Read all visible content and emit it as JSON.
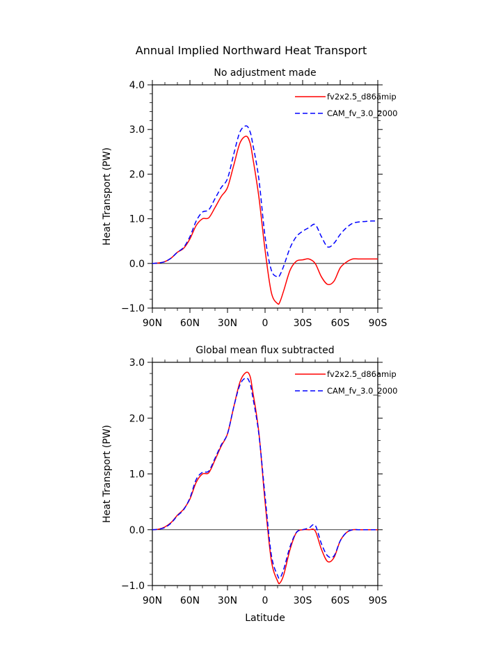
{
  "figure_title": "Annual Implied Northward Heat Transport",
  "colors": {
    "series_a": "#ff0000",
    "series_b": "#0000ff",
    "axis": "#000000"
  },
  "chart_data": [
    {
      "type": "line",
      "title": "No adjustment made",
      "xlabel": "",
      "ylabel": "Heat Transport (PW)",
      "xlim": [
        90,
        -90
      ],
      "ylim": [
        -1.0,
        4.0
      ],
      "yticks": [
        -1.0,
        0.0,
        1.0,
        2.0,
        3.0,
        4.0
      ],
      "ytick_labels": [
        "−1.0",
        "0.0",
        "1.0",
        "2.0",
        "3.0",
        "4.0"
      ],
      "xticks": [
        90,
        60,
        30,
        0,
        -30,
        -60,
        -90
      ],
      "xtick_labels": [
        "90N",
        "60N",
        "30N",
        "0",
        "30S",
        "60S",
        "90S"
      ],
      "legend": "top-right",
      "series": [
        {
          "name": "fv2x2.5_d86amip",
          "style": "solid",
          "x": [
            90,
            85,
            80,
            75,
            70,
            65,
            60,
            55,
            50,
            45,
            40,
            35,
            30,
            25,
            20,
            15,
            12,
            10,
            5,
            0,
            -5,
            -10,
            -12,
            -15,
            -20,
            -25,
            -30,
            -35,
            -40,
            -45,
            -50,
            -55,
            -60,
            -65,
            -70,
            -75,
            -80,
            -85,
            -90
          ],
          "y": [
            0.0,
            0.01,
            0.04,
            0.12,
            0.25,
            0.34,
            0.55,
            0.85,
            1.0,
            1.02,
            1.25,
            1.5,
            1.7,
            2.2,
            2.7,
            2.85,
            2.7,
            2.4,
            1.5,
            0.3,
            -0.65,
            -0.9,
            -0.85,
            -0.6,
            -0.15,
            0.05,
            0.08,
            0.1,
            0.0,
            -0.3,
            -0.47,
            -0.4,
            -0.1,
            0.03,
            0.1,
            0.1,
            0.1,
            0.1,
            0.1
          ]
        },
        {
          "name": "CAM_fv_3.0_2000",
          "style": "dashed",
          "x": [
            90,
            85,
            80,
            75,
            70,
            65,
            60,
            55,
            50,
            45,
            40,
            35,
            30,
            25,
            20,
            15,
            12,
            10,
            5,
            0,
            -5,
            -10,
            -12,
            -15,
            -20,
            -25,
            -30,
            -35,
            -40,
            -45,
            -50,
            -55,
            -60,
            -65,
            -70,
            -75,
            -80,
            -85,
            -90
          ],
          "y": [
            0.0,
            0.01,
            0.04,
            0.12,
            0.25,
            0.36,
            0.6,
            0.95,
            1.15,
            1.2,
            1.45,
            1.7,
            1.9,
            2.45,
            2.95,
            3.08,
            2.95,
            2.7,
            1.9,
            0.6,
            -0.15,
            -0.3,
            -0.25,
            -0.05,
            0.35,
            0.6,
            0.72,
            0.8,
            0.87,
            0.6,
            0.37,
            0.45,
            0.65,
            0.8,
            0.9,
            0.93,
            0.94,
            0.95,
            0.95
          ]
        }
      ]
    },
    {
      "type": "line",
      "title": "Global mean flux subtracted",
      "xlabel": "Latitude",
      "ylabel": "Heat Transport (PW)",
      "xlim": [
        90,
        -90
      ],
      "ylim": [
        -1.0,
        3.0
      ],
      "yticks": [
        -1.0,
        0.0,
        1.0,
        2.0,
        3.0
      ],
      "ytick_labels": [
        "−1.0",
        "0.0",
        "1.0",
        "2.0",
        "3.0"
      ],
      "xticks": [
        90,
        60,
        30,
        0,
        -30,
        -60,
        -90
      ],
      "xtick_labels": [
        "90N",
        "60N",
        "30N",
        "0",
        "30S",
        "60S",
        "90S"
      ],
      "legend": "top-right",
      "series": [
        {
          "name": "fv2x2.5_d86amip",
          "style": "solid",
          "x": [
            90,
            85,
            80,
            75,
            70,
            65,
            60,
            55,
            50,
            45,
            40,
            35,
            30,
            25,
            20,
            15,
            12,
            10,
            5,
            0,
            -5,
            -10,
            -12,
            -15,
            -20,
            -25,
            -30,
            -35,
            -40,
            -45,
            -50,
            -55,
            -60,
            -65,
            -70,
            -75,
            -80,
            -85,
            -90
          ],
          "y": [
            0.0,
            0.01,
            0.05,
            0.13,
            0.26,
            0.37,
            0.55,
            0.85,
            1.0,
            1.02,
            1.25,
            1.5,
            1.72,
            2.2,
            2.65,
            2.82,
            2.75,
            2.5,
            1.75,
            0.5,
            -0.55,
            -0.92,
            -0.95,
            -0.8,
            -0.35,
            -0.05,
            0.0,
            0.0,
            -0.02,
            -0.35,
            -0.57,
            -0.5,
            -0.2,
            -0.05,
            0.0,
            0.0,
            0.0,
            0.0,
            0.0
          ]
        },
        {
          "name": "CAM_fv_3.0_2000",
          "style": "dashed",
          "x": [
            90,
            85,
            80,
            75,
            70,
            65,
            60,
            55,
            50,
            45,
            40,
            35,
            30,
            25,
            20,
            15,
            12,
            10,
            5,
            0,
            -5,
            -10,
            -12,
            -15,
            -20,
            -25,
            -30,
            -35,
            -40,
            -45,
            -50,
            -55,
            -60,
            -65,
            -70,
            -75,
            -80,
            -85,
            -90
          ],
          "y": [
            0.0,
            0.01,
            0.04,
            0.12,
            0.25,
            0.36,
            0.57,
            0.9,
            1.03,
            1.05,
            1.28,
            1.52,
            1.72,
            2.2,
            2.6,
            2.72,
            2.62,
            2.4,
            1.72,
            0.6,
            -0.45,
            -0.82,
            -0.86,
            -0.7,
            -0.3,
            -0.05,
            0.0,
            0.03,
            0.08,
            -0.25,
            -0.47,
            -0.47,
            -0.2,
            -0.05,
            0.0,
            0.0,
            0.0,
            0.0,
            0.0
          ]
        }
      ]
    }
  ]
}
